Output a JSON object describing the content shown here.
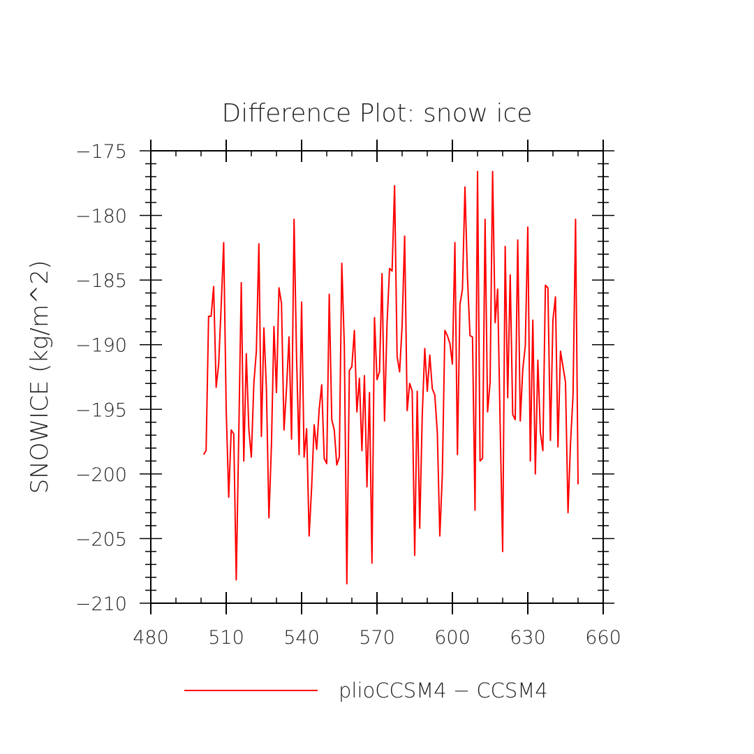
{
  "chart_data": {
    "type": "line",
    "title": "Difference Plot: snow ice",
    "xlabel": "",
    "ylabel": "SNOWICE   (kg/m^2)",
    "xlim": [
      480,
      660
    ],
    "ylim": [
      -210,
      -175
    ],
    "x_ticks": [
      480,
      510,
      540,
      570,
      600,
      630,
      660
    ],
    "y_ticks": [
      -175,
      -180,
      -185,
      -190,
      -195,
      -200,
      -205,
      -210
    ],
    "x_tick_labels": [
      "480",
      "510",
      "540",
      "570",
      "600",
      "630",
      "660"
    ],
    "y_tick_labels": [
      "−175",
      "−180",
      "−185",
      "−190",
      "−195",
      "−200",
      "−205",
      "−210"
    ],
    "legend_position": "bottom",
    "grid": false,
    "series": [
      {
        "name": "plioCCSM4 − CCSM4",
        "color": "#ff0000",
        "x": [
          501,
          502,
          503,
          504,
          505,
          506,
          507,
          508,
          509,
          510,
          511,
          512,
          513,
          514,
          515,
          516,
          517,
          518,
          519,
          520,
          521,
          522,
          523,
          524,
          525,
          526,
          527,
          528,
          529,
          530,
          531,
          532,
          533,
          534,
          535,
          536,
          537,
          538,
          539,
          540,
          541,
          542,
          543,
          544,
          545,
          546,
          547,
          548,
          549,
          550,
          551,
          552,
          553,
          554,
          555,
          556,
          557,
          558,
          559,
          560,
          561,
          562,
          563,
          564,
          565,
          566,
          567,
          568,
          569,
          570,
          571,
          572,
          573,
          574,
          575,
          576,
          577,
          578,
          579,
          580,
          581,
          582,
          583,
          584,
          585,
          586,
          587,
          588,
          589,
          590,
          591,
          592,
          593,
          594,
          595,
          596,
          597,
          598,
          599,
          600,
          601,
          602,
          603,
          604,
          605,
          606,
          607,
          608,
          609,
          610,
          611,
          612,
          613,
          614,
          615,
          616,
          617,
          618,
          619,
          620,
          621,
          622,
          623,
          624,
          625,
          626,
          627,
          628,
          629,
          630,
          631,
          632,
          633,
          634,
          635,
          636,
          637,
          638,
          639,
          640,
          641,
          642,
          643,
          644,
          645,
          646,
          647,
          648,
          649,
          650
        ],
        "values": [
          -198.5,
          -198.2,
          -187.8,
          -187.8,
          -185.5,
          -193.3,
          -191.5,
          -187.0,
          -182.1,
          -195.0,
          -201.8,
          -196.6,
          -196.9,
          -208.2,
          -197.0,
          -185.2,
          -199.0,
          -190.7,
          -196.5,
          -198.7,
          -193.0,
          -190.5,
          -182.2,
          -197.1,
          -188.7,
          -193.4,
          -203.4,
          -197.8,
          -188.6,
          -193.7,
          -185.6,
          -186.8,
          -196.6,
          -193.4,
          -189.4,
          -197.3,
          -180.3,
          -191.0,
          -198.5,
          -186.7,
          -198.7,
          -196.5,
          -204.8,
          -201.0,
          -196.2,
          -198.1,
          -195.0,
          -193.1,
          -198.8,
          -199.2,
          -186.1,
          -195.8,
          -196.6,
          -199.3,
          -198.7,
          -183.7,
          -190.1,
          -208.5,
          -192.0,
          -191.7,
          -188.9,
          -195.2,
          -192.6,
          -198.2,
          -192.4,
          -201.0,
          -193.7,
          -206.9,
          -187.9,
          -192.7,
          -192.1,
          -184.5,
          -195.9,
          -188.3,
          -184.1,
          -184.3,
          -177.7,
          -190.9,
          -192.1,
          -188.5,
          -181.6,
          -195.1,
          -193.0,
          -193.6,
          -206.3,
          -193.6,
          -204.2,
          -195.5,
          -190.3,
          -193.6,
          -190.8,
          -193.4,
          -193.9,
          -196.8,
          -204.8,
          -200.0,
          -188.9,
          -189.3,
          -189.9,
          -191.5,
          -182.1,
          -198.5,
          -186.9,
          -185.7,
          -177.8,
          -184.8,
          -189.3,
          -189.4,
          -202.8,
          -176.6,
          -199.0,
          -198.8,
          -180.3,
          -195.2,
          -192.9,
          -176.6,
          -188.3,
          -185.7,
          -196.2,
          -206.0,
          -182.4,
          -194.1,
          -184.6,
          -195.4,
          -195.8,
          -181.9,
          -195.9,
          -191.9,
          -190.1,
          -180.9,
          -199.0,
          -188.1,
          -200.0,
          -191.2,
          -196.8,
          -198.2,
          -185.4,
          -185.6,
          -197.4,
          -188.1,
          -186.3,
          -197.9,
          -190.5,
          -191.7,
          -192.9,
          -203.0,
          -197.6,
          -193.9,
          -180.3,
          -200.8
        ]
      }
    ]
  }
}
